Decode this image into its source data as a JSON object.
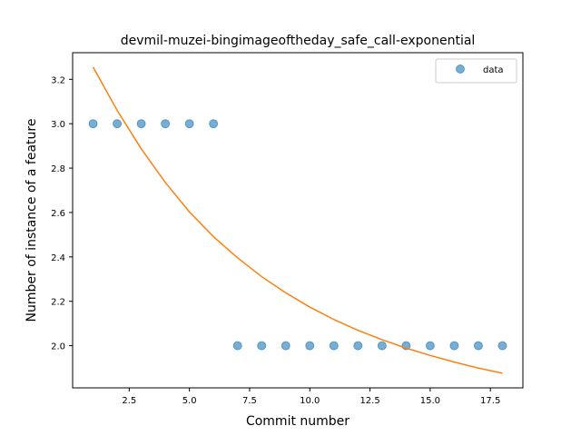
{
  "chart_data": {
    "type": "scatter",
    "title": "devmil-muzei-bingimageoftheday_safe_call-exponential",
    "xlabel": "Commit number",
    "ylabel": "Number of instance of a feature",
    "xlim": [
      0.15,
      18.85
    ],
    "ylim": [
      1.81,
      3.32
    ],
    "xticks": [
      2.5,
      5.0,
      7.5,
      10.0,
      12.5,
      15.0,
      17.5
    ],
    "xtick_labels": [
      "2.5",
      "5.0",
      "7.5",
      "10.0",
      "12.5",
      "15.0",
      "17.5"
    ],
    "yticks": [
      2.0,
      2.2,
      2.4,
      2.6,
      2.8,
      3.0,
      3.2
    ],
    "ytick_labels": [
      "2.0",
      "2.2",
      "2.4",
      "2.6",
      "2.8",
      "3.0",
      "3.2"
    ],
    "grid": false,
    "legend": {
      "position": "top-right",
      "entries": [
        "data"
      ]
    },
    "series": [
      {
        "name": "data",
        "kind": "scatter",
        "color": "#1f77b4",
        "x": [
          1,
          2,
          3,
          4,
          5,
          6,
          7,
          8,
          9,
          10,
          11,
          12,
          13,
          14,
          15,
          16,
          17,
          18
        ],
        "y": [
          3,
          3,
          3,
          3,
          3,
          3,
          2,
          2,
          2,
          2,
          2,
          2,
          2,
          2,
          2,
          2,
          2,
          2
        ]
      },
      {
        "kind": "line",
        "color": "#ff7f0e",
        "x": [
          1,
          2,
          3,
          4,
          5,
          6,
          7,
          8,
          9,
          10,
          11,
          12,
          13,
          14,
          15,
          16,
          17,
          18
        ],
        "y": [
          3.255,
          3.06,
          2.887,
          2.735,
          2.603,
          2.491,
          2.396,
          2.311,
          2.238,
          2.174,
          2.118,
          2.069,
          2.027,
          1.989,
          1.956,
          1.926,
          1.899,
          1.876
        ]
      }
    ]
  }
}
